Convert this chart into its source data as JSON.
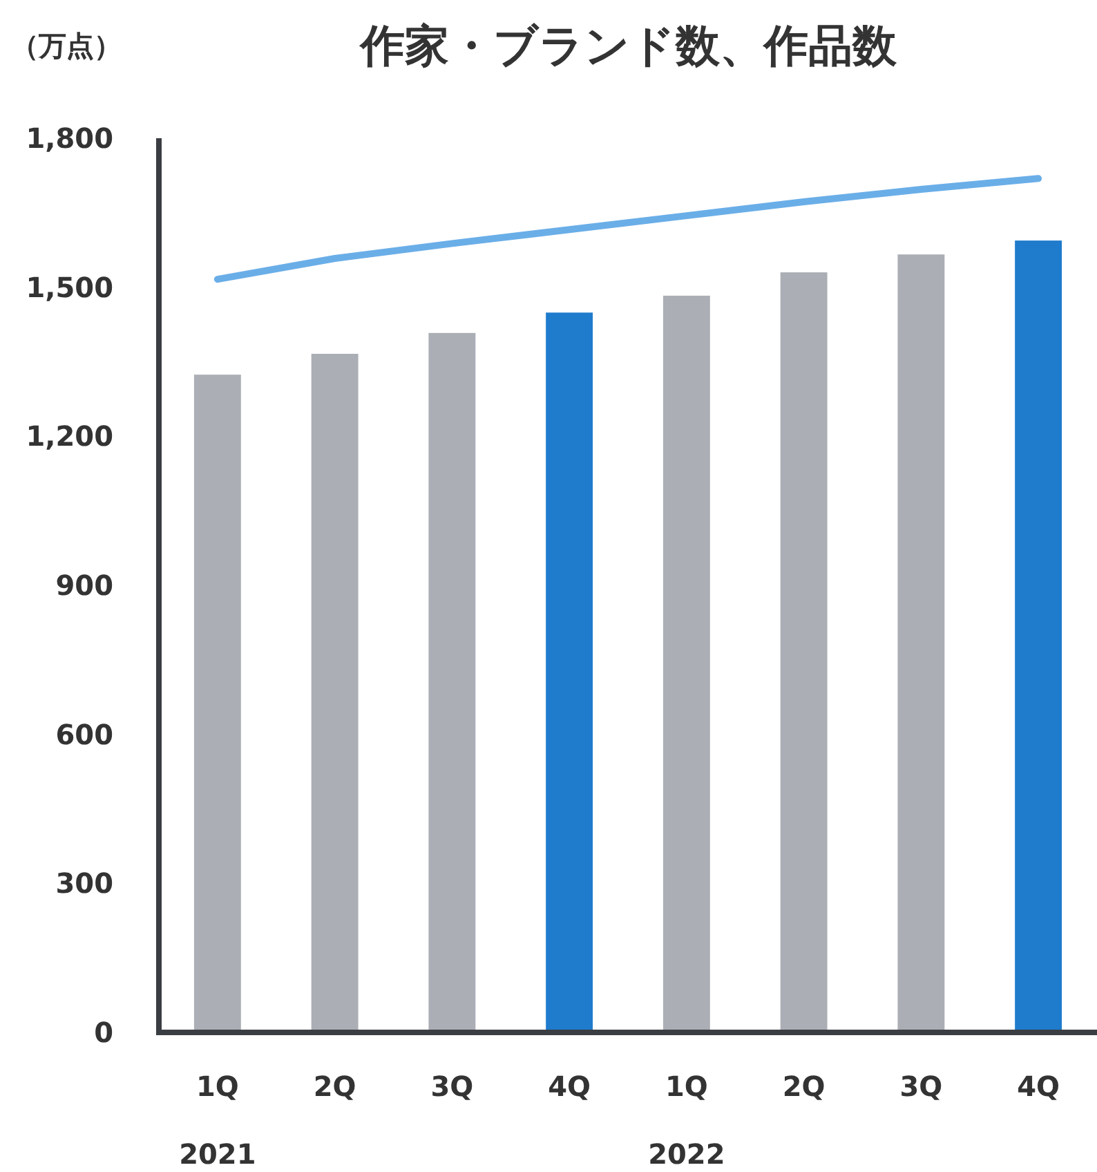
{
  "chart_data": {
    "type": "bar",
    "title": "作家・ブランド数、作品数",
    "ylabel": "（万点）",
    "categories": [
      "1Q\n2021",
      "2Q",
      "3Q",
      "4Q",
      "1Q\n2022",
      "2Q",
      "3Q",
      "4Q"
    ],
    "series": [
      {
        "colors": [
          "#abaeb5",
          "#abaeb5",
          "#abaeb5",
          "#1f7bcc",
          "#abaeb5",
          "#abaeb5",
          "#abaeb5",
          "#1f7bcc"
        ],
        "values": [
          1324,
          1366,
          1408,
          1449,
          1483,
          1530,
          1566,
          1594
        ]
      },
      {
        "type": "line",
        "color": "#6aaee8",
        "values": [
          1516,
          1558,
          1588,
          1616,
          1644,
          1672,
          1697,
          1719
        ]
      }
    ],
    "ylim": [
      0,
      1800
    ],
    "yticks": [
      0,
      300,
      600,
      900,
      {
        "value": 1200,
        "label": "1,200"
      },
      {
        "value": 1500,
        "label": "1,500"
      },
      {
        "value": 1800,
        "label": "1,800"
      }
    ],
    "grid": false,
    "marker": "none"
  }
}
